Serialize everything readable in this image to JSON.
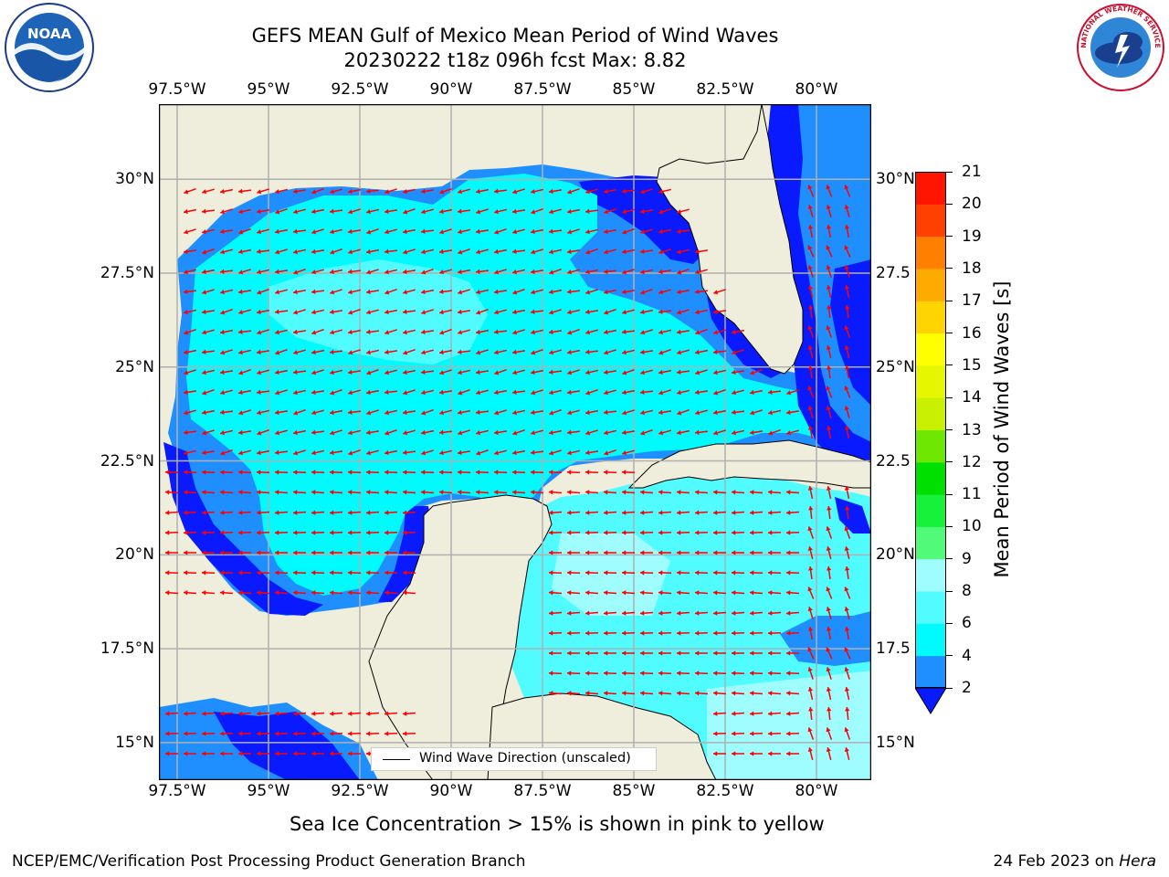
{
  "title": {
    "line1": "GEFS MEAN Gulf of Mexico Mean Period of Wind Waves",
    "line2": "20230222 t18z 096h fcst   Max: 8.82"
  },
  "map": {
    "x_ticks": [
      "97.5°W",
      "95°W",
      "92.5°W",
      "90°W",
      "87.5°W",
      "85°W",
      "82.5°W",
      "80°W"
    ],
    "y_ticks": [
      "30°N",
      "27.5°N",
      "25°N",
      "22.5°N",
      "20°N",
      "17.5°N",
      "15°N"
    ],
    "y_ticks_right": [
      "30°N",
      "27.5",
      "25°N",
      "22.5",
      "20°N",
      "17.5",
      "15°N"
    ],
    "lon_range": [
      -98,
      -78.5
    ],
    "lat_range": [
      14,
      32
    ],
    "land_color": "#efeedc",
    "arrow_color": "#ff0000",
    "legend_label": "Wind Wave Direction (unscaled)"
  },
  "colorbar": {
    "label": "Mean Period of Wind Waves [s]",
    "ticks": [
      "2",
      "4",
      "6",
      "8",
      "9",
      "10",
      "11",
      "12",
      "13",
      "14",
      "15",
      "16",
      "17",
      "18",
      "19",
      "20",
      "21"
    ],
    "colors": [
      "#0a1aff",
      "#1f8fff",
      "#00fbff",
      "#50fcff",
      "#9ffcff",
      "#52fa7a",
      "#16f23a",
      "#00e000",
      "#6ee800",
      "#c8f000",
      "#e6f500",
      "#ffff00",
      "#ffd400",
      "#ffaa00",
      "#ff8000",
      "#ff4000",
      "#ff1500"
    ]
  },
  "caption": "Sea Ice Concentration > 15% is shown in pink to yellow",
  "footer": {
    "left": "NCEP/EMC/Verification Post Processing Product Generation Branch",
    "right_date": "24 Feb 2023 on ",
    "right_host": "Hera"
  },
  "logos": {
    "noaa_text": "NOAA",
    "nws_text": "NATIONAL WEATHER SERVICE"
  }
}
